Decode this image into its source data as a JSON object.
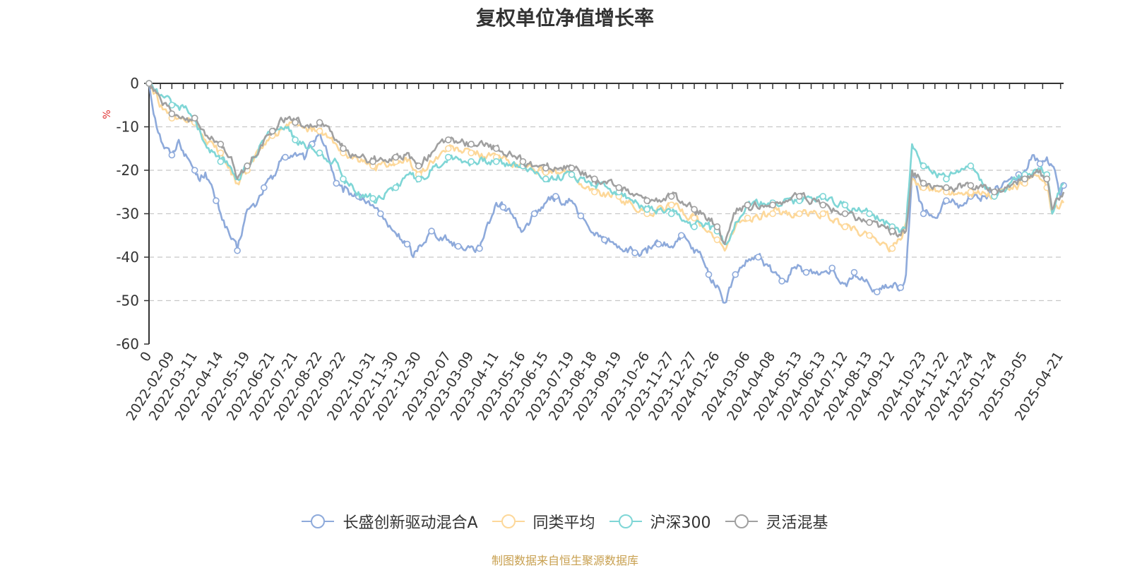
{
  "chart_data": {
    "type": "line",
    "title": "复权单位净值增长率",
    "ylabel": "%",
    "ylim": [
      -60,
      0
    ],
    "yticks": [
      0,
      -10,
      -20,
      -30,
      -40,
      -50,
      -60
    ],
    "grid": true,
    "legend_position": "bottom",
    "start_date": "2022-01-10",
    "end_date": "2025-04-25",
    "x_tick_labels": [
      "0",
      "2022-02-09",
      "2022-03-11",
      "2022-04-14",
      "2022-05-19",
      "2022-06-21",
      "2022-07-21",
      "2022-08-22",
      "2022-09-22",
      "2022-10-31",
      "2022-11-30",
      "2022-12-30",
      "2023-02-07",
      "2023-03-09",
      "2023-04-11",
      "2023-05-16",
      "2023-06-15",
      "2023-07-19",
      "2023-08-18",
      "2023-09-19",
      "2023-10-26",
      "2023-11-27",
      "2023-12-27",
      "2024-01-26",
      "2024-03-06",
      "2024-04-08",
      "2024-05-13",
      "2024-06-13",
      "2024-07-12",
      "2024-08-13",
      "2024-09-12",
      "2024-10-23",
      "2024-11-22",
      "2024-12-24",
      "2025-01-24",
      "2025-03-05",
      "2025-04-21"
    ],
    "series": [
      {
        "name": "长盛创新驱动混合A",
        "color": "#8eaadb",
        "x": [
          "2022-01-10",
          "2022-01-18",
          "2022-01-28",
          "2022-02-09",
          "2022-02-18",
          "2022-03-01",
          "2022-03-11",
          "2022-03-16",
          "2022-03-25",
          "2022-04-08",
          "2022-04-14",
          "2022-04-26",
          "2022-05-06",
          "2022-05-19",
          "2022-05-31",
          "2022-06-10",
          "2022-06-21",
          "2022-06-30",
          "2022-07-08",
          "2022-07-21",
          "2022-08-02",
          "2022-08-12",
          "2022-08-22",
          "2022-09-01",
          "2022-09-13",
          "2022-09-22",
          "2022-10-12",
          "2022-10-20",
          "2022-10-31",
          "2022-11-10",
          "2022-11-20",
          "2022-11-30",
          "2022-12-15",
          "2022-12-23",
          "2022-12-30",
          "2023-01-16",
          "2023-02-07",
          "2023-02-20",
          "2023-03-09",
          "2023-03-20",
          "2023-03-31",
          "2023-04-11",
          "2023-04-20",
          "2023-05-04",
          "2023-05-16",
          "2023-05-31",
          "2023-06-15",
          "2023-06-28",
          "2023-07-10",
          "2023-07-19",
          "2023-07-31",
          "2023-08-10",
          "2023-08-18",
          "2023-08-31",
          "2023-09-11",
          "2023-09-19",
          "2023-10-10",
          "2023-10-26",
          "2023-11-10",
          "2023-11-27",
          "2023-12-10",
          "2023-12-27",
          "2024-01-05",
          "2024-01-15",
          "2024-01-26",
          "2024-02-05",
          "2024-02-19",
          "2024-03-06",
          "2024-03-20",
          "2024-04-08",
          "2024-04-20",
          "2024-05-01",
          "2024-05-13",
          "2024-05-22",
          "2024-06-13",
          "2024-06-25",
          "2024-07-12",
          "2024-07-24",
          "2024-08-13",
          "2024-08-23",
          "2024-09-05",
          "2024-09-12",
          "2024-09-23",
          "2024-09-30",
          "2024-10-08",
          "2024-10-23",
          "2024-11-08",
          "2024-11-22",
          "2024-12-10",
          "2024-12-24",
          "2025-01-10",
          "2025-01-24",
          "2025-02-14",
          "2025-02-25",
          "2025-03-05",
          "2025-03-15",
          "2025-03-25",
          "2025-04-03",
          "2025-04-10",
          "2025-04-21",
          "2025-04-25"
        ],
        "y": [
          0,
          -8,
          -14,
          -16.5,
          -13,
          -17,
          -20,
          -22,
          -20.5,
          -27,
          -30,
          -35,
          -38.5,
          -29,
          -28,
          -24,
          -22,
          -18,
          -17,
          -16,
          -17.5,
          -14,
          -11,
          -16,
          -23,
          -25,
          -26,
          -27,
          -28,
          -30,
          -33,
          -34.5,
          -37,
          -40,
          -37.5,
          -34,
          -36,
          -37.5,
          -37.5,
          -38,
          -32,
          -27.5,
          -28.5,
          -31,
          -34,
          -30,
          -27.5,
          -26,
          -28,
          -27,
          -30.5,
          -33,
          -35,
          -36,
          -36.5,
          -37.5,
          -39,
          -39,
          -37,
          -37.5,
          -35,
          -39,
          -39.5,
          -44,
          -46.5,
          -50.5,
          -44,
          -41,
          -40,
          -43.5,
          -45.5,
          -44,
          -42,
          -43.5,
          -43.5,
          -42.5,
          -46,
          -43.5,
          -46.5,
          -48,
          -47,
          -47,
          -47,
          -44,
          -21,
          -30,
          -31,
          -27,
          -28,
          -26,
          -26,
          -25,
          -22,
          -21,
          -20,
          -16.5,
          -18.5,
          -17,
          -19,
          -26,
          -23.5
        ]
      },
      {
        "name": "同类平均",
        "color": "#fdd89a",
        "x": [
          "2022-01-10",
          "2022-01-28",
          "2022-02-09",
          "2022-03-01",
          "2022-03-11",
          "2022-03-25",
          "2022-04-14",
          "2022-04-26",
          "2022-05-06",
          "2022-05-19",
          "2022-06-10",
          "2022-06-21",
          "2022-07-08",
          "2022-07-21",
          "2022-08-12",
          "2022-08-22",
          "2022-09-13",
          "2022-09-22",
          "2022-10-12",
          "2022-10-31",
          "2022-11-30",
          "2022-12-15",
          "2022-12-30",
          "2023-01-16",
          "2023-02-07",
          "2023-03-09",
          "2023-04-11",
          "2023-05-16",
          "2023-06-15",
          "2023-07-19",
          "2023-08-18",
          "2023-09-19",
          "2023-10-26",
          "2023-11-27",
          "2023-12-27",
          "2024-01-15",
          "2024-01-26",
          "2024-02-05",
          "2024-02-19",
          "2024-03-06",
          "2024-04-08",
          "2024-05-13",
          "2024-06-13",
          "2024-07-12",
          "2024-08-13",
          "2024-09-12",
          "2024-09-23",
          "2024-09-30",
          "2024-10-08",
          "2024-10-23",
          "2024-11-22",
          "2024-12-24",
          "2025-01-24",
          "2025-03-05",
          "2025-03-25",
          "2025-04-03",
          "2025-04-10",
          "2025-04-21",
          "2025-04-25"
        ],
        "y": [
          0,
          -6,
          -8,
          -9,
          -9,
          -13,
          -16,
          -19,
          -23,
          -20,
          -14,
          -12,
          -10,
          -9,
          -11,
          -11,
          -14,
          -16,
          -18,
          -19,
          -18,
          -18,
          -21,
          -18,
          -15,
          -16,
          -17,
          -19,
          -20.5,
          -21,
          -25,
          -26,
          -30,
          -28,
          -31,
          -34,
          -36,
          -38.5,
          -33,
          -31,
          -30,
          -30,
          -30,
          -33,
          -35,
          -38,
          -36,
          -32,
          -22,
          -24,
          -25,
          -25,
          -26,
          -23,
          -22,
          -24,
          -30,
          -28,
          -27.5
        ]
      },
      {
        "name": "沪深300",
        "color": "#7fd6d6",
        "x": [
          "2022-01-10",
          "2022-01-28",
          "2022-02-09",
          "2022-03-01",
          "2022-03-11",
          "2022-03-25",
          "2022-04-14",
          "2022-04-26",
          "2022-05-06",
          "2022-05-19",
          "2022-06-10",
          "2022-06-21",
          "2022-07-08",
          "2022-07-21",
          "2022-08-12",
          "2022-08-22",
          "2022-09-13",
          "2022-09-22",
          "2022-10-12",
          "2022-10-31",
          "2022-11-30",
          "2022-12-15",
          "2022-12-30",
          "2023-01-16",
          "2023-02-07",
          "2023-03-09",
          "2023-04-11",
          "2023-05-16",
          "2023-06-15",
          "2023-07-19",
          "2023-08-18",
          "2023-09-19",
          "2023-10-26",
          "2023-11-27",
          "2023-12-27",
          "2024-01-15",
          "2024-01-26",
          "2024-02-05",
          "2024-02-19",
          "2024-03-06",
          "2024-04-08",
          "2024-05-13",
          "2024-06-13",
          "2024-07-12",
          "2024-08-13",
          "2024-09-12",
          "2024-09-23",
          "2024-09-30",
          "2024-10-08",
          "2024-10-23",
          "2024-11-22",
          "2024-12-24",
          "2025-01-24",
          "2025-03-05",
          "2025-03-25",
          "2025-04-03",
          "2025-04-10",
          "2025-04-21",
          "2025-04-25"
        ],
        "y": [
          0,
          -3,
          -5,
          -6,
          -8,
          -14,
          -18,
          -19,
          -22,
          -19,
          -13,
          -11,
          -10,
          -13,
          -15,
          -16,
          -18,
          -22,
          -25,
          -26.5,
          -24,
          -21,
          -22,
          -20,
          -17,
          -18,
          -18,
          -19,
          -22,
          -21,
          -23,
          -25,
          -29,
          -30,
          -33,
          -32,
          -34,
          -37,
          -32,
          -28,
          -27.5,
          -27,
          -26,
          -28,
          -30,
          -33,
          -34,
          -33,
          -14,
          -19,
          -22,
          -19,
          -26,
          -21,
          -20,
          -21,
          -30,
          -24,
          -23
        ]
      },
      {
        "name": "灵活混基",
        "color": "#a0a0a0",
        "x": [
          "2022-01-10",
          "2022-01-28",
          "2022-02-09",
          "2022-03-01",
          "2022-03-11",
          "2022-03-25",
          "2022-04-14",
          "2022-04-26",
          "2022-05-06",
          "2022-05-19",
          "2022-06-10",
          "2022-06-21",
          "2022-07-08",
          "2022-07-21",
          "2022-08-12",
          "2022-08-22",
          "2022-09-13",
          "2022-09-22",
          "2022-10-12",
          "2022-10-31",
          "2022-11-30",
          "2022-12-15",
          "2022-12-30",
          "2023-01-16",
          "2023-02-07",
          "2023-03-09",
          "2023-04-11",
          "2023-05-16",
          "2023-06-15",
          "2023-07-19",
          "2023-08-18",
          "2023-09-19",
          "2023-10-26",
          "2023-11-27",
          "2023-12-27",
          "2024-01-15",
          "2024-01-26",
          "2024-02-05",
          "2024-02-19",
          "2024-03-06",
          "2024-04-08",
          "2024-05-13",
          "2024-06-13",
          "2024-07-12",
          "2024-08-13",
          "2024-09-12",
          "2024-09-23",
          "2024-09-30",
          "2024-10-08",
          "2024-10-23",
          "2024-11-22",
          "2024-12-24",
          "2025-01-24",
          "2025-03-05",
          "2025-03-25",
          "2025-04-03",
          "2025-04-10",
          "2025-04-21",
          "2025-04-25"
        ],
        "y": [
          0,
          -5,
          -7,
          -8,
          -8,
          -12,
          -14,
          -17,
          -22,
          -19,
          -13,
          -11,
          -8,
          -9,
          -10,
          -9,
          -13,
          -15,
          -17,
          -18,
          -17,
          -16,
          -19,
          -16,
          -13,
          -14,
          -15,
          -18,
          -19.5,
          -19.5,
          -22,
          -24,
          -27,
          -26,
          -29,
          -31,
          -33,
          -37,
          -30,
          -28,
          -28,
          -26,
          -28,
          -30,
          -32,
          -34,
          -35,
          -34,
          -20,
          -23,
          -24,
          -23.5,
          -25,
          -22,
          -20,
          -22,
          -29,
          -26,
          -25
        ]
      }
    ]
  },
  "legend": {
    "items": [
      {
        "label": "长盛创新驱动混合A",
        "color": "#8eaadb"
      },
      {
        "label": "同类平均",
        "color": "#fdd89a"
      },
      {
        "label": "沪深300",
        "color": "#7fd6d6"
      },
      {
        "label": "灵活混基",
        "color": "#a0a0a0"
      }
    ]
  },
  "footer": {
    "source": "制图数据来自恒生聚源数据库"
  }
}
